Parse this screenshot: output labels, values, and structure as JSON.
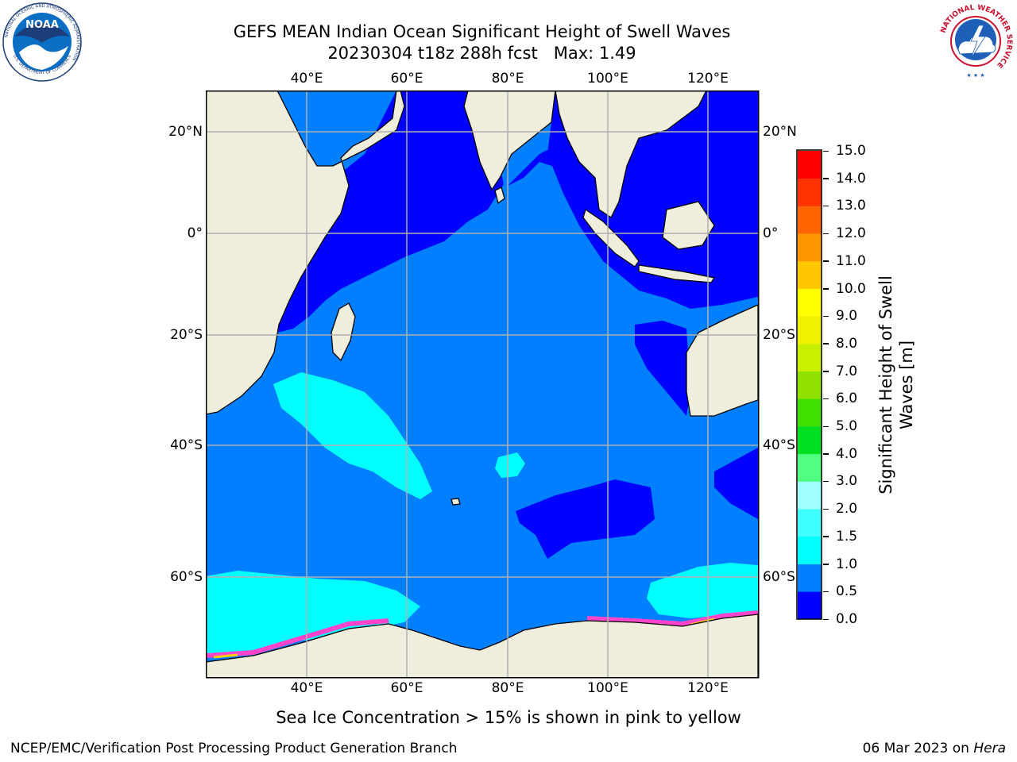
{
  "header": {
    "title_line1": "GEFS MEAN Indian Ocean Significant Height of Swell Waves",
    "title_line2": "20230304 t18z 288h fcst   Max: 1.49"
  },
  "logos": {
    "left": {
      "name": "NOAA",
      "ring_text": "NATIONAL OCEANIC AND ATMOSPHERIC ADMINISTRATION",
      "bottom_text": "U.S. DEPARTMENT OF COMMERCE"
    },
    "right": {
      "ring_text": "NATIONAL WEATHER SERVICE"
    }
  },
  "map": {
    "lon_labels": [
      "40°E",
      "60°E",
      "80°E",
      "100°E",
      "120°E"
    ],
    "lat_labels_left": [
      "20°N",
      "0°",
      "20°S",
      "40°S",
      "60°S"
    ],
    "lat_labels_right": [
      "20°N",
      "0°",
      "20°S",
      "40°S",
      "60°S"
    ],
    "land_color": "#efeddc",
    "ocean_base_color": "#0080ff",
    "grid_color": "#b0b0b0"
  },
  "colorbar": {
    "title": "Significant Height of Swell Waves [m]",
    "title_line1": "Significant Height of Swell",
    "title_line2": "Waves [m]",
    "tick_labels": [
      "0.0",
      "0.5",
      "1.0",
      "1.5",
      "2.0",
      "3.0",
      "4.0",
      "5.0",
      "6.0",
      "7.0",
      "8.0",
      "9.0",
      "10.0",
      "11.0",
      "12.0",
      "13.0",
      "14.0",
      "15.0"
    ],
    "colors": [
      "#0000ff",
      "#0080ff",
      "#00ffff",
      "#40ffff",
      "#a0ffff",
      "#50ff80",
      "#00e020",
      "#40e000",
      "#90e000",
      "#c8f000",
      "#f0f000",
      "#ffff00",
      "#ffc800",
      "#ff9600",
      "#ff6400",
      "#ff3200",
      "#ff0000"
    ]
  },
  "note": "Sea Ice Concentration > 15% is shown in pink to yellow",
  "footer": {
    "left": "NCEP/EMC/Verification Post Processing Product Generation Branch",
    "right_prefix": "06 Mar 2023 on ",
    "right_machine": "Hera"
  }
}
